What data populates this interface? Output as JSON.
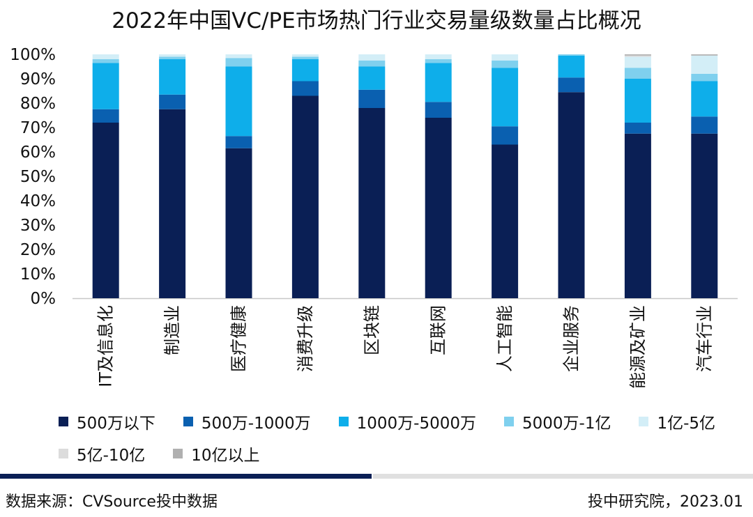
{
  "chart_data": {
    "type": "bar",
    "stacked": true,
    "title": "2022年中国VC/PE市场热门行业交易量级数量占比概况",
    "categories": [
      "IT及信息化",
      "制造业",
      "医疗健康",
      "消费升级",
      "区块链",
      "互联网",
      "人工智能",
      "企业服务",
      "能源及矿业",
      "汽车行业"
    ],
    "y_ticks": [
      "0%",
      "10%",
      "20%",
      "30%",
      "40%",
      "50%",
      "60%",
      "70%",
      "80%",
      "90%",
      "100%"
    ],
    "ylim": [
      0,
      100
    ],
    "y_unit": "%",
    "grid": false,
    "legend_position": "bottom",
    "series": [
      {
        "name": "500万以下",
        "color": "#0a1f55",
        "values": [
          72.0,
          77.5,
          61.5,
          83.0,
          78.0,
          74.0,
          63.0,
          84.5,
          67.5,
          67.5
        ]
      },
      {
        "name": "500万-1000万",
        "color": "#0a60b0",
        "values": [
          5.5,
          6.0,
          5.0,
          6.0,
          7.5,
          6.5,
          7.5,
          6.0,
          4.5,
          7.0
        ]
      },
      {
        "name": "1000万-5000万",
        "color": "#0eaeea",
        "values": [
          19.0,
          14.5,
          28.5,
          9.0,
          9.5,
          16.0,
          24.0,
          9.0,
          18.0,
          14.5
        ]
      },
      {
        "name": "5000万-1亿",
        "color": "#7fd0ee",
        "values": [
          1.5,
          1.0,
          3.5,
          1.0,
          2.5,
          1.5,
          3.0,
          0.5,
          4.5,
          3.0
        ]
      },
      {
        "name": "1亿-5亿",
        "color": "#d3eef7",
        "values": [
          2.0,
          1.0,
          1.5,
          1.0,
          2.5,
          2.0,
          2.5,
          0.0,
          4.5,
          7.5
        ]
      },
      {
        "name": "5亿-10亿",
        "color": "#dcdcdc",
        "values": [
          0.0,
          0.0,
          0.0,
          0.0,
          0.0,
          0.0,
          0.0,
          0.0,
          0.5,
          0.0
        ]
      },
      {
        "name": "10亿以上",
        "color": "#b0b0b0",
        "values": [
          0.0,
          0.0,
          0.0,
          0.0,
          0.0,
          0.0,
          0.0,
          0.0,
          0.5,
          0.5
        ]
      }
    ]
  },
  "footer": {
    "source": "数据来源：CVSource投中数据",
    "credit": "投中研究院，2023.01"
  },
  "colors": {
    "divider_dark": "#0a1f55",
    "divider_light": "#e0e0e0"
  }
}
